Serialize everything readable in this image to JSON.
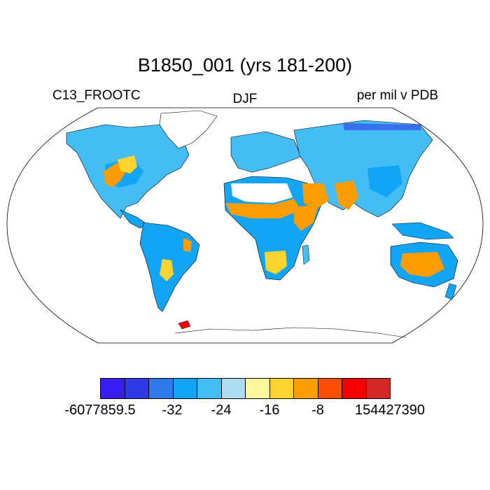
{
  "title": "B1850_001 (yrs 181-200)",
  "left_label": "C13_FROOTC",
  "center_label": "DJF",
  "right_label": "per mil v PDB",
  "colorbar": {
    "colors": [
      "#3a1df5",
      "#2e3be6",
      "#2e7aeb",
      "#12a5f5",
      "#44bdf5",
      "#abdcf0",
      "#fff59a",
      "#ffd42e",
      "#ff9c00",
      "#ff4d00",
      "#f50000",
      "#d42828"
    ],
    "tick_labels": [
      "-6077859.5",
      "-32",
      "-24",
      "-16",
      "-8",
      "154427390"
    ]
  },
  "legend_colors": {
    "land_dominant": "#44bdf5",
    "arid_regions": "#ff9c00",
    "semi_arid": "#ffd42e",
    "coastline": "#000000",
    "missing": "#ffffff"
  }
}
